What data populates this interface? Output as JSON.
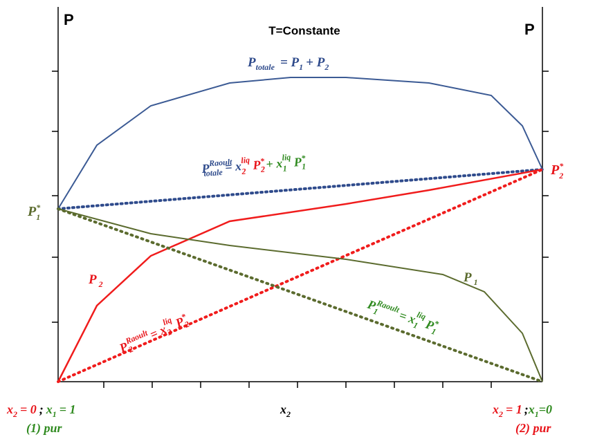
{
  "corner_labels": {
    "left": "P",
    "right": "P"
  },
  "title": "T=Constante",
  "p_totale": [
    "P",
    "totale",
    "= P",
    "1",
    "+ P",
    "2"
  ],
  "p_raoult_totale": [
    "P",
    "Raoult",
    "totale",
    "= x",
    "2",
    "liq",
    "P",
    "2",
    "*",
    "+ x",
    "1",
    "liq",
    "P",
    "1",
    "*"
  ],
  "p1_star": [
    "P",
    "1",
    "*"
  ],
  "p2_star": [
    "P",
    "2",
    "*"
  ],
  "p2_label": [
    "P",
    "2"
  ],
  "p1_label": [
    "P",
    "1"
  ],
  "p2_raoult": [
    "P",
    "2",
    "Raoult",
    "= x",
    "2",
    "liq",
    "P",
    "2",
    "*"
  ],
  "p1_raoult": [
    "P",
    "1",
    "Raoult",
    "= x",
    "1",
    "liq",
    "P",
    "1",
    "*"
  ],
  "bottom_left": [
    "x",
    "2",
    "= 0",
    ";",
    "x",
    "1",
    "= 1"
  ],
  "bottom_left_note": "(1) pur",
  "x_axis_label": [
    "x",
    "2"
  ],
  "bottom_right": [
    "x",
    "2",
    "= 1",
    ";",
    "x",
    "1",
    "=0"
  ],
  "bottom_right_note": "(2) pur"
}
